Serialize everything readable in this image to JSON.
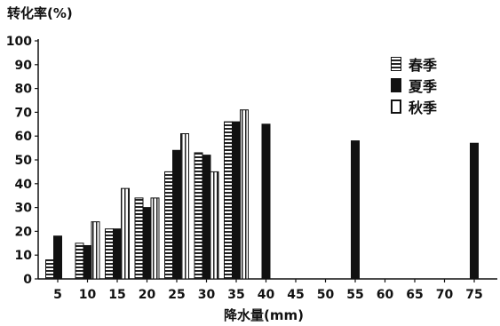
{
  "chart_data": {
    "type": "bar",
    "title": "",
    "ylabel": "转化率(%)",
    "xlabel": "降水量(mm)",
    "categories": [
      "5",
      "10",
      "15",
      "20",
      "25",
      "30",
      "35",
      "40",
      "45",
      "50",
      "55",
      "60",
      "65",
      "70",
      "75"
    ],
    "ylim": [
      0,
      100
    ],
    "yticks": [
      "0",
      "10",
      "20",
      "30",
      "40",
      "50",
      "60",
      "70",
      "80",
      "90",
      "100"
    ],
    "series": [
      {
        "name": "春季",
        "values": [
          8,
          15,
          21,
          34,
          45,
          53,
          66,
          null,
          null,
          null,
          null,
          null,
          null,
          null,
          null
        ]
      },
      {
        "name": "夏季",
        "values": [
          18,
          14,
          21,
          30,
          54,
          52,
          66,
          65,
          null,
          null,
          58,
          null,
          null,
          null,
          57
        ]
      },
      {
        "name": "秋季",
        "values": [
          null,
          24,
          38,
          34,
          61,
          45,
          71,
          null,
          null,
          null,
          null,
          null,
          null,
          null,
          null
        ]
      }
    ],
    "legend": {
      "position": "top-right"
    }
  },
  "colors": {
    "ink": "#111111",
    "background": "#ffffff"
  }
}
